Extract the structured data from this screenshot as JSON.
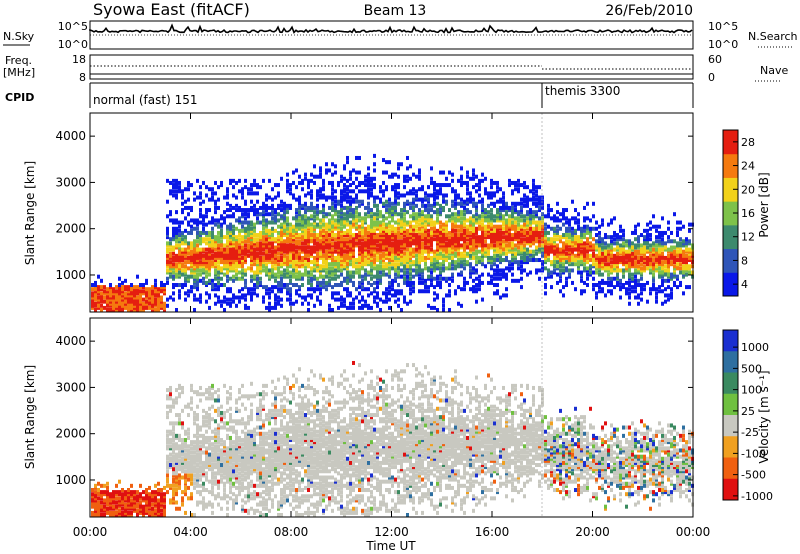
{
  "header": {
    "station": "Syowa East (fitACF)",
    "beam": "Beam 13",
    "date": "26/Feb/2010"
  },
  "chart_data": [
    {
      "panel": "noise",
      "type": "line",
      "left_label": "N.Sky",
      "right_label": "N.Search",
      "yticks_left": [
        "10^5",
        "10^0"
      ],
      "yticks_right": [
        "10^5",
        "10^0"
      ]
    },
    {
      "panel": "frequency",
      "type": "line",
      "left_label_top": "Freq.",
      "left_label_unit": "[MHz]",
      "right_label": "Nave",
      "yticks_left": [
        "18",
        "8"
      ],
      "yticks_right": [
        "60",
        "0"
      ]
    },
    {
      "panel": "cpid",
      "type": "table",
      "label": "CPID",
      "segments": [
        {
          "start_hour": 0,
          "end_hour": 18,
          "name": "normal (fast) 151"
        },
        {
          "start_hour": 18,
          "end_hour": 24,
          "name": "themis 3300"
        }
      ]
    },
    {
      "panel": "power",
      "type": "heatmap",
      "ylabel": "Slant Range [km]",
      "ylim": [
        200,
        4500
      ],
      "yticks": [
        1000,
        2000,
        3000,
        4000
      ],
      "colorbar": {
        "label": "Power [dB]",
        "ticks": [
          "4",
          "8",
          "12",
          "16",
          "20",
          "24",
          "28"
        ],
        "colors": [
          "#0a18e8",
          "#2f55b8",
          "#3d8a6e",
          "#7ec24a",
          "#f2d21a",
          "#f57a0f",
          "#e51e10"
        ]
      }
    },
    {
      "panel": "velocity",
      "type": "heatmap",
      "ylabel": "Slant Range [km]",
      "ylim": [
        200,
        4500
      ],
      "yticks": [
        1000,
        2000,
        3000,
        4000
      ],
      "colorbar": {
        "label": "Velocity [m s⁻¹]",
        "ticks": [
          "1000",
          "500",
          "100",
          "25",
          "-25",
          "-100",
          "-500",
          "-1000"
        ],
        "colors": [
          "#1a2fd0",
          "#2e6fa0",
          "#3a8a60",
          "#6fc040",
          "#c8c8c0",
          "#f0a020",
          "#f06010",
          "#e01010"
        ]
      }
    }
  ],
  "xaxis": {
    "label": "Time UT",
    "xlim_hours": [
      0,
      24
    ],
    "ticks": [
      "00:00",
      "04:00",
      "08:00",
      "12:00",
      "16:00",
      "20:00",
      "00:00"
    ]
  }
}
